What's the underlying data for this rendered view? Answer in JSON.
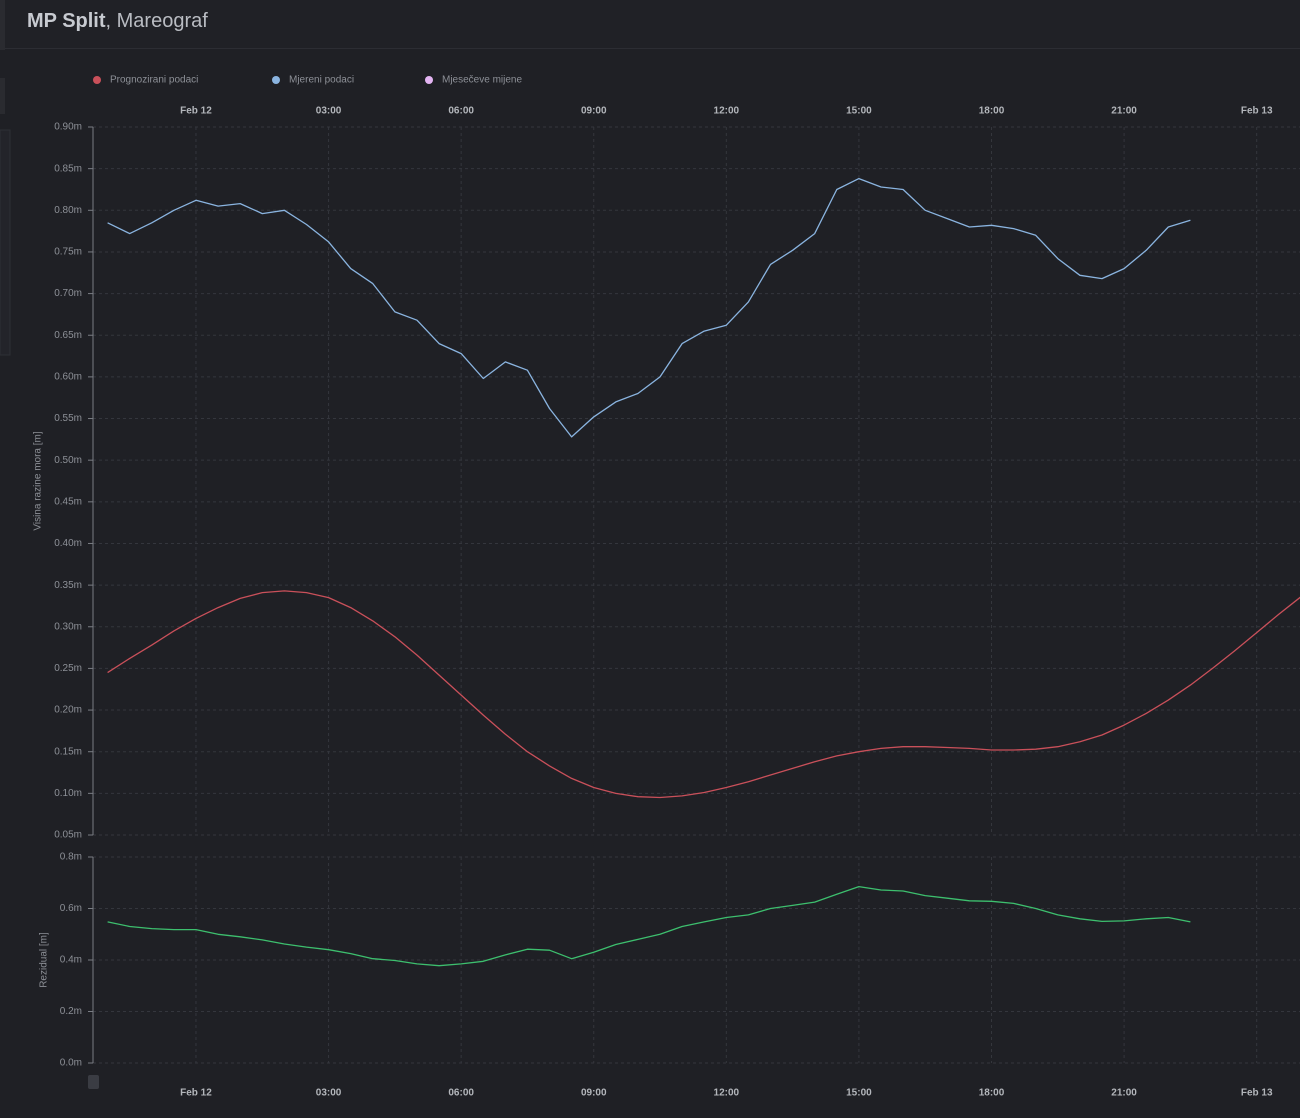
{
  "page": {
    "title": "MP Split",
    "subtitle": ", Mareograf"
  },
  "chart_data": [
    {
      "type": "line",
      "y_label": "Visina razine mora [m]",
      "legend": true,
      "legend_position": "top-left",
      "xtick_position": "top",
      "grid": true,
      "x": [
        -2,
        -1.5,
        -1,
        -0.5,
        0,
        0.5,
        1,
        1.5,
        2,
        2.5,
        3,
        3.5,
        4,
        4.5,
        5,
        5.5,
        6,
        6.5,
        7,
        7.5,
        8,
        8.5,
        9,
        9.5,
        10,
        10.5,
        11,
        11.5,
        12,
        12.5,
        13,
        13.5,
        14,
        14.5,
        15,
        15.5,
        16,
        16.5,
        17,
        17.5,
        18,
        18.5,
        19,
        19.5,
        20,
        20.5,
        21,
        21.5,
        22,
        22.5,
        23,
        23.5,
        24,
        24.5,
        25
      ],
      "xlim": [
        -2.33,
        24.98
      ],
      "xticks": [
        {
          "value": 0,
          "label": "Feb 12"
        },
        {
          "value": 3,
          "label": "03:00"
        },
        {
          "value": 6,
          "label": "06:00"
        },
        {
          "value": 9,
          "label": "09:00"
        },
        {
          "value": 12,
          "label": "12:00"
        },
        {
          "value": 15,
          "label": "15:00"
        },
        {
          "value": 18,
          "label": "18:00"
        },
        {
          "value": 21,
          "label": "21:00"
        },
        {
          "value": 24,
          "label": "Feb 13"
        }
      ],
      "ylim": [
        0.05,
        0.9
      ],
      "yticks": [
        {
          "value": 0.05,
          "label": "0.05m"
        },
        {
          "value": 0.1,
          "label": "0.10m"
        },
        {
          "value": 0.15,
          "label": "0.15m"
        },
        {
          "value": 0.2,
          "label": "0.20m"
        },
        {
          "value": 0.25,
          "label": "0.25m"
        },
        {
          "value": 0.3,
          "label": "0.30m"
        },
        {
          "value": 0.35,
          "label": "0.35m"
        },
        {
          "value": 0.4,
          "label": "0.40m"
        },
        {
          "value": 0.45,
          "label": "0.45m"
        },
        {
          "value": 0.5,
          "label": "0.50m"
        },
        {
          "value": 0.55,
          "label": "0.55m"
        },
        {
          "value": 0.6,
          "label": "0.60m"
        },
        {
          "value": 0.65,
          "label": "0.65m"
        },
        {
          "value": 0.7,
          "label": "0.70m"
        },
        {
          "value": 0.75,
          "label": "0.75m"
        },
        {
          "value": 0.8,
          "label": "0.80m"
        },
        {
          "value": 0.85,
          "label": "0.85m"
        },
        {
          "value": 0.9,
          "label": "0.90m"
        }
      ],
      "series": [
        {
          "name": "Prognozirani podaci",
          "color": "#c9505a",
          "values": [
            0.245,
            0.262,
            0.278,
            0.295,
            0.31,
            0.323,
            0.334,
            0.341,
            0.343,
            0.341,
            0.335,
            0.323,
            0.307,
            0.288,
            0.266,
            0.242,
            0.218,
            0.194,
            0.171,
            0.15,
            0.133,
            0.118,
            0.107,
            0.1,
            0.096,
            0.095,
            0.097,
            0.101,
            0.107,
            0.114,
            0.122,
            0.13,
            0.138,
            0.145,
            0.15,
            0.154,
            0.156,
            0.156,
            0.155,
            0.154,
            0.152,
            0.152,
            0.153,
            0.156,
            0.162,
            0.17,
            0.182,
            0.196,
            0.212,
            0.23,
            0.25,
            0.271,
            0.293,
            0.315,
            0.336
          ]
        },
        {
          "name": "Mjereni podaci",
          "color": "#8ab4e0",
          "values": [
            0.785,
            0.772,
            0.785,
            0.8,
            0.812,
            0.805,
            0.808,
            0.796,
            0.8,
            0.783,
            0.762,
            0.73,
            0.712,
            0.678,
            0.668,
            0.64,
            0.628,
            0.598,
            0.618,
            0.608,
            0.562,
            0.528,
            0.552,
            0.57,
            0.58,
            0.6,
            0.64,
            0.655,
            0.662,
            0.69,
            0.735,
            0.752,
            0.772,
            0.825,
            0.838,
            0.828,
            0.825,
            0.8,
            0.79,
            0.78,
            0.782,
            0.778,
            0.77,
            0.742,
            0.722,
            0.718,
            0.73,
            0.752,
            0.78,
            0.788,
            null,
            null,
            null,
            null,
            null
          ]
        },
        {
          "name": "Mjesečeve mijene",
          "color": "#e3b4f2",
          "values": [
            null,
            null,
            null,
            null,
            null,
            null,
            null,
            null,
            null,
            null,
            null,
            null,
            null,
            null,
            null,
            null,
            null,
            null,
            null,
            null,
            null,
            null,
            null,
            null,
            null,
            null,
            null,
            null,
            null,
            null,
            null,
            null,
            null,
            null,
            null,
            null,
            null,
            null,
            null,
            null,
            null,
            null,
            null,
            null,
            null,
            null,
            null,
            null,
            null,
            null,
            null,
            null,
            null,
            null,
            null
          ]
        }
      ]
    },
    {
      "type": "line",
      "y_label": "Rezidual [m]",
      "legend": false,
      "xtick_position": "bottom",
      "grid": true,
      "x": [
        -2,
        -1.5,
        -1,
        -0.5,
        0,
        0.5,
        1,
        1.5,
        2,
        2.5,
        3,
        3.5,
        4,
        4.5,
        5,
        5.5,
        6,
        6.5,
        7,
        7.5,
        8,
        8.5,
        9,
        9.5,
        10,
        10.5,
        11,
        11.5,
        12,
        12.5,
        13,
        13.5,
        14,
        14.5,
        15,
        15.5,
        16,
        16.5,
        17,
        17.5,
        18,
        18.5,
        19,
        19.5,
        20,
        20.5,
        21,
        21.5,
        22,
        22.5,
        23,
        23.5,
        24,
        24.5,
        25
      ],
      "xlim": [
        -2.33,
        24.98
      ],
      "xticks": [
        {
          "value": 0,
          "label": "Feb 12"
        },
        {
          "value": 3,
          "label": "03:00"
        },
        {
          "value": 6,
          "label": "06:00"
        },
        {
          "value": 9,
          "label": "09:00"
        },
        {
          "value": 12,
          "label": "12:00"
        },
        {
          "value": 15,
          "label": "15:00"
        },
        {
          "value": 18,
          "label": "18:00"
        },
        {
          "value": 21,
          "label": "21:00"
        },
        {
          "value": 24,
          "label": "Feb 13"
        }
      ],
      "ylim": [
        0,
        0.8
      ],
      "yticks": [
        {
          "value": 0,
          "label": "0.0m"
        },
        {
          "value": 0.2,
          "label": "0.2m"
        },
        {
          "value": 0.4,
          "label": "0.4m"
        },
        {
          "value": 0.6,
          "label": "0.6m"
        },
        {
          "value": 0.8,
          "label": "0.8m"
        }
      ],
      "series": [
        {
          "name": "Rezidual",
          "color": "#3dbf6e",
          "values": [
            0.548,
            0.53,
            0.522,
            0.518,
            0.518,
            0.5,
            0.49,
            0.478,
            0.462,
            0.45,
            0.44,
            0.425,
            0.405,
            0.398,
            0.385,
            0.378,
            0.385,
            0.395,
            0.42,
            0.442,
            0.438,
            0.405,
            0.43,
            0.46,
            0.48,
            0.5,
            0.53,
            0.548,
            0.565,
            0.575,
            0.6,
            0.612,
            0.625,
            0.655,
            0.685,
            0.672,
            0.668,
            0.65,
            0.64,
            0.63,
            0.628,
            0.62,
            0.6,
            0.575,
            0.56,
            0.55,
            0.552,
            0.56,
            0.565,
            0.548,
            null,
            null,
            null,
            null,
            null
          ]
        }
      ]
    }
  ]
}
